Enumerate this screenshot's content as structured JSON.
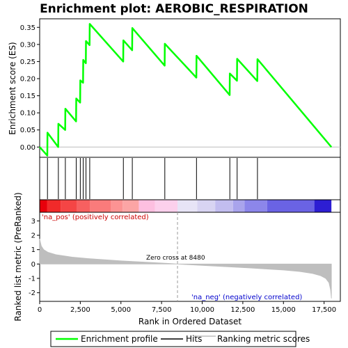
{
  "chart_data": {
    "type": "line",
    "title": "Enrichment plot: AEROBIC_RESPIRATION",
    "xlabel": "Rank in Ordered Dataset",
    "ylabel_top": "Enrichment score (ES)",
    "ylabel_bottom": "Ranked list metric (PreRanked)",
    "n_genes": 17950,
    "xlim": [
      0,
      18500
    ],
    "x_ticks": [
      0,
      2500,
      5000,
      7500,
      10000,
      12500,
      15000,
      17500
    ],
    "x_tick_labels": [
      "0",
      "2,500",
      "5,000",
      "7,500",
      "10,000",
      "12,500",
      "15,000",
      "17,500"
    ],
    "es_ylim": [
      -0.03,
      0.375
    ],
    "es_ticks": [
      0.0,
      0.05,
      0.1,
      0.15,
      0.2,
      0.25,
      0.3,
      0.35
    ],
    "es_tick_labels": [
      "0.00",
      "0.05",
      "0.10",
      "0.15",
      "0.20",
      "0.25",
      "0.30",
      "0.35"
    ],
    "metric_ylim": [
      -2.6,
      3.6
    ],
    "metric_ticks": [
      3,
      2,
      1,
      0,
      -1,
      -2
    ],
    "metric_tick_labels": [
      "3",
      "2",
      "1",
      "0",
      "-1",
      "-2"
    ],
    "hits": [
      480,
      1150,
      1580,
      2250,
      2500,
      2680,
      2850,
      3080,
      5150,
      5700,
      7700,
      9650,
      11700,
      12150,
      13400
    ],
    "enrichment_profile": [
      [
        0,
        0.0
      ],
      [
        470,
        -0.025
      ],
      [
        480,
        0.042
      ],
      [
        1140,
        0.0
      ],
      [
        1150,
        0.068
      ],
      [
        1570,
        0.05
      ],
      [
        1580,
        0.112
      ],
      [
        2240,
        0.075
      ],
      [
        2250,
        0.142
      ],
      [
        2490,
        0.13
      ],
      [
        2500,
        0.195
      ],
      [
        2670,
        0.188
      ],
      [
        2680,
        0.255
      ],
      [
        2840,
        0.245
      ],
      [
        2850,
        0.31
      ],
      [
        3070,
        0.298
      ],
      [
        3080,
        0.36
      ],
      [
        5140,
        0.25
      ],
      [
        5150,
        0.312
      ],
      [
        5690,
        0.283
      ],
      [
        5700,
        0.348
      ],
      [
        7690,
        0.238
      ],
      [
        7700,
        0.302
      ],
      [
        9640,
        0.203
      ],
      [
        9650,
        0.267
      ],
      [
        11690,
        0.152
      ],
      [
        11700,
        0.215
      ],
      [
        12140,
        0.194
      ],
      [
        12150,
        0.258
      ],
      [
        13390,
        0.193
      ],
      [
        13400,
        0.257
      ],
      [
        17950,
        0.0
      ]
    ],
    "ranked_metric": [
      [
        0,
        1.75
      ],
      [
        100,
        1.25
      ],
      [
        250,
        1.0
      ],
      [
        500,
        0.82
      ],
      [
        1000,
        0.65
      ],
      [
        2000,
        0.48
      ],
      [
        3000,
        0.38
      ],
      [
        4000,
        0.3
      ],
      [
        5000,
        0.22
      ],
      [
        6000,
        0.16
      ],
      [
        7000,
        0.1
      ],
      [
        8000,
        0.04
      ],
      [
        8480,
        0.0
      ],
      [
        9000,
        -0.04
      ],
      [
        10000,
        -0.1
      ],
      [
        11000,
        -0.16
      ],
      [
        12000,
        -0.22
      ],
      [
        13000,
        -0.28
      ],
      [
        14000,
        -0.35
      ],
      [
        15000,
        -0.42
      ],
      [
        16000,
        -0.52
      ],
      [
        16800,
        -0.66
      ],
      [
        17300,
        -0.82
      ],
      [
        17600,
        -1.0
      ],
      [
        17800,
        -1.3
      ],
      [
        17900,
        -1.8
      ],
      [
        17950,
        -2.4
      ]
    ],
    "zero_cross_rank": 8480,
    "color_bar_segments": [
      [
        0,
        450,
        "#e8000b"
      ],
      [
        450,
        1300,
        "#f12a2a"
      ],
      [
        1300,
        2300,
        "#f54545"
      ],
      [
        2300,
        3100,
        "#f76060"
      ],
      [
        3100,
        4400,
        "#fa7b7b"
      ],
      [
        4400,
        5100,
        "#fc9393"
      ],
      [
        5100,
        6100,
        "#fca5a5"
      ],
      [
        6100,
        7100,
        "#fdbfe0"
      ],
      [
        7100,
        8480,
        "#fcd0ec"
      ],
      [
        8480,
        9700,
        "#e7e4f6"
      ],
      [
        9700,
        10800,
        "#d8d4f2"
      ],
      [
        10800,
        11900,
        "#c2bdef"
      ],
      [
        11900,
        12600,
        "#a9a4ec"
      ],
      [
        12600,
        14000,
        "#8c86ea"
      ],
      [
        14000,
        16900,
        "#6a63e4"
      ],
      [
        16900,
        17950,
        "#2d1ed3"
      ]
    ],
    "annotations": {
      "na_pos": "'na_pos' (positively correlated)",
      "na_neg": "'na_neg' (negatively correlated)",
      "zero_cross": "Zero cross at 8480"
    },
    "legend": [
      {
        "label": "Enrichment profile",
        "color": "#00ff00"
      },
      {
        "label": "Hits",
        "color": "#000000"
      },
      {
        "label": "Ranking metric scores",
        "color": "#bebebe"
      }
    ],
    "colors": {
      "profile": "#00ff00",
      "hits": "#000000",
      "metric": "#bebebe",
      "zero_line": "#bbbbbb"
    }
  }
}
